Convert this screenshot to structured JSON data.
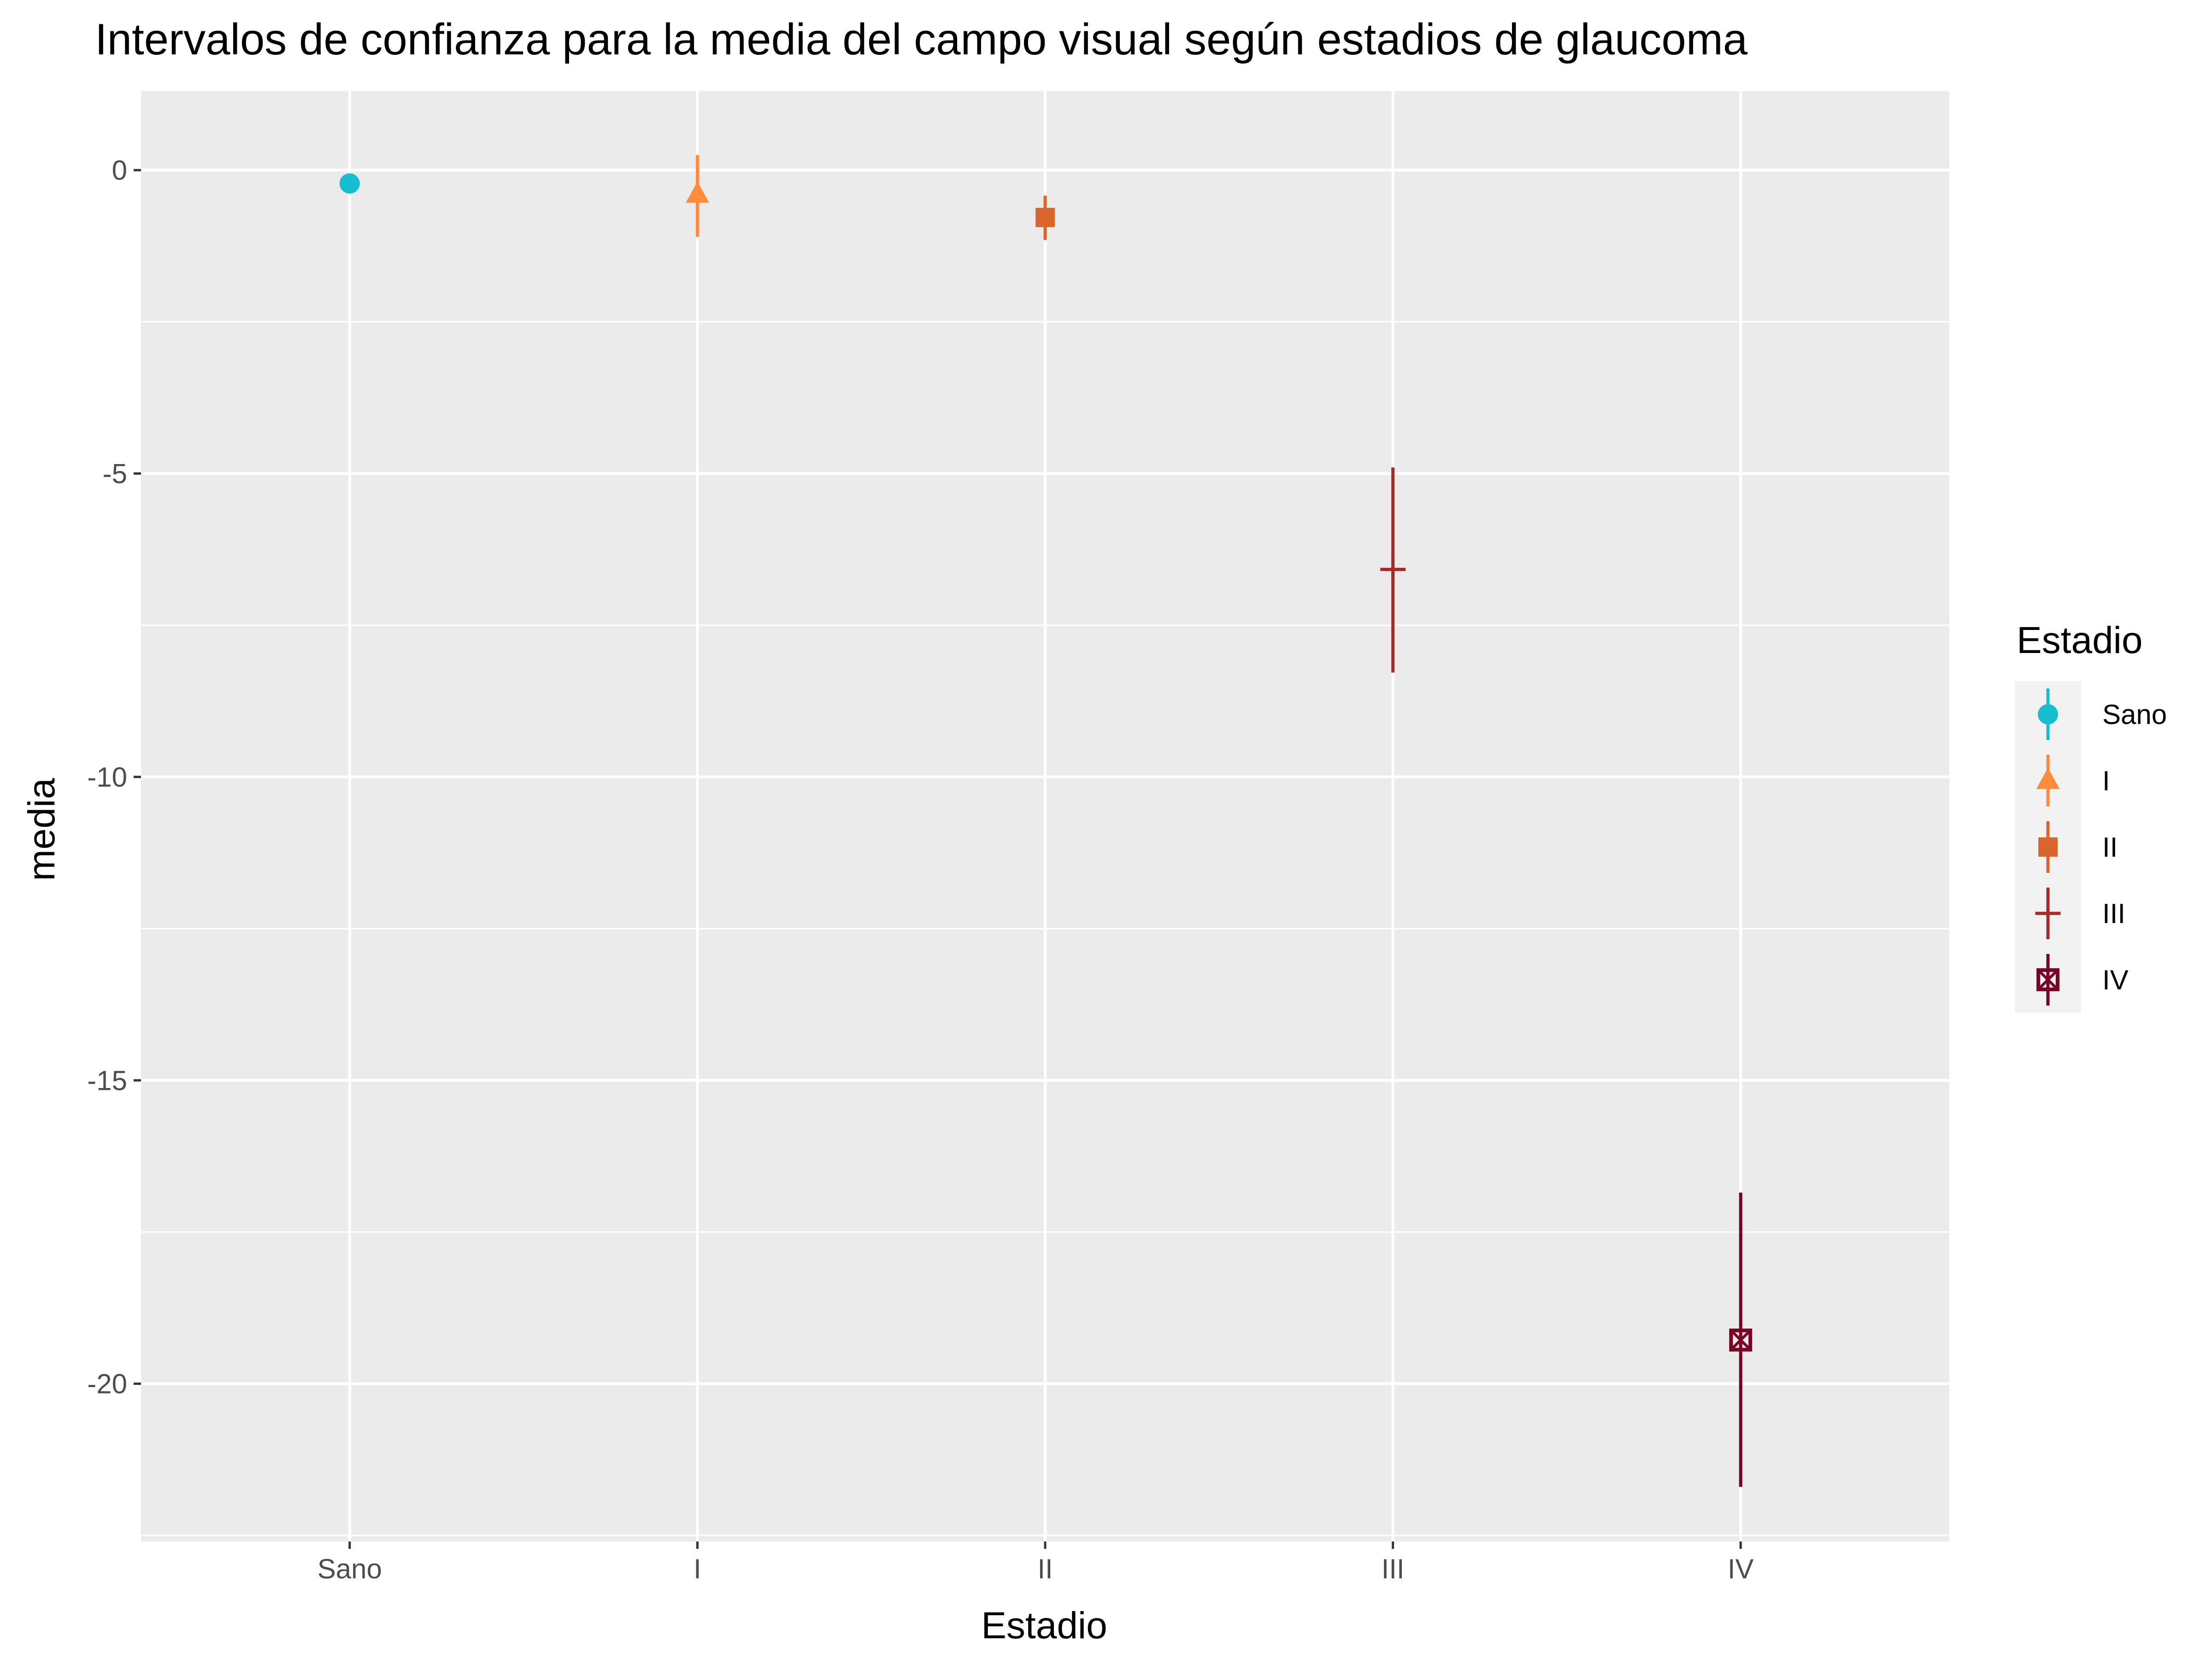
{
  "chart_data": {
    "type": "scatter",
    "title": "Intervalos de confianza para la media del campo visual según estadios de glaucoma",
    "xlabel": "Estadio",
    "ylabel": "media",
    "categories": [
      "Sano",
      "I",
      "II",
      "III",
      "IV"
    ],
    "ylim": [
      -22.6,
      1.3
    ],
    "yticks": [
      0,
      -5,
      -10,
      -15,
      -20
    ],
    "ytick_labels": [
      "0",
      "-5",
      "-10",
      "-15",
      "-20"
    ],
    "grid": true,
    "legend": {
      "title": "Estadio",
      "position": "right"
    },
    "series": [
      {
        "name": "Sano",
        "category": "Sano",
        "mean": -0.22,
        "lower": -0.35,
        "upper": -0.1,
        "color": "#17BECF",
        "shape": "circle"
      },
      {
        "name": "I",
        "category": "I",
        "mean": -0.4,
        "lower": -1.1,
        "upper": 0.25,
        "color": "#FF8C3A",
        "shape": "triangle"
      },
      {
        "name": "II",
        "category": "II",
        "mean": -0.78,
        "lower": -1.15,
        "upper": -0.42,
        "color": "#D9642C",
        "shape": "square"
      },
      {
        "name": "III",
        "category": "III",
        "mean": -6.58,
        "lower": -8.28,
        "upper": -4.9,
        "color": "#A52A2A",
        "shape": "plus"
      },
      {
        "name": "IV",
        "category": "IV",
        "mean": -19.28,
        "lower": -21.7,
        "upper": -16.85,
        "color": "#7A0026",
        "shape": "square-cross"
      }
    ]
  }
}
